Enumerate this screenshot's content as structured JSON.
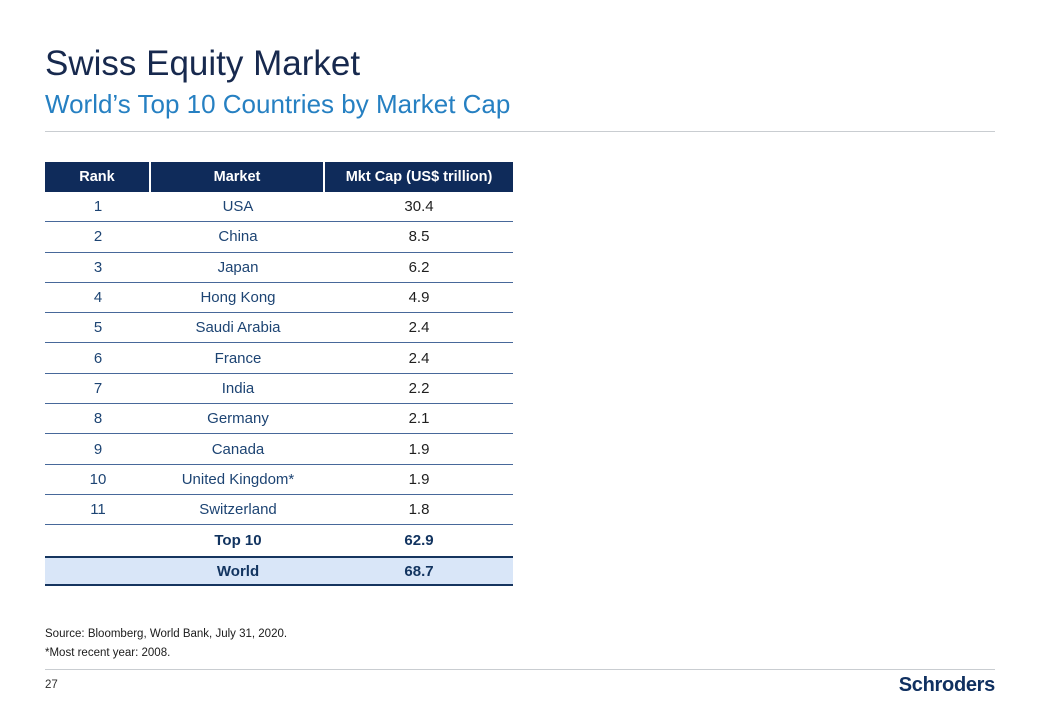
{
  "header": {
    "title": "Swiss Equity Market",
    "subtitle": "World’s Top 10 Countries by Market Cap"
  },
  "chart_data": {
    "type": "table",
    "title": "World’s Top 10 Countries by Market Cap",
    "columns": [
      "Rank",
      "Market",
      "Mkt Cap (US$ trillion)"
    ],
    "rows": [
      [
        "1",
        "USA",
        "30.4"
      ],
      [
        "2",
        "China",
        "8.5"
      ],
      [
        "3",
        "Japan",
        "6.2"
      ],
      [
        "4",
        "Hong Kong",
        "4.9"
      ],
      [
        "5",
        "Saudi Arabia",
        "2.4"
      ],
      [
        "6",
        "France",
        "2.4"
      ],
      [
        "7",
        "India",
        "2.2"
      ],
      [
        "8",
        "Germany",
        "2.1"
      ],
      [
        "9",
        "Canada",
        "1.9"
      ],
      [
        "10",
        "United Kingdom*",
        "1.9"
      ],
      [
        "11",
        "Switzerland",
        "1.8"
      ]
    ],
    "totals": [
      [
        "",
        "Top 10",
        "62.9"
      ],
      [
        "",
        "World",
        "68.7"
      ]
    ]
  },
  "footnotes": {
    "source": "Source: Bloomberg, World Bank, July 31, 2020.",
    "note": "*Most recent year: 2008."
  },
  "footer": {
    "page_number": "27",
    "logo_text": "Schroders"
  },
  "colors": {
    "title_navy": "#17294e",
    "subtitle_blue": "#2680c2",
    "table_header_bg": "#0f2b5a",
    "row_line": "#47689a",
    "body_text_navy": "#1d4473",
    "value_text": "#1f1f1f",
    "total_text_navy": "#123460",
    "world_row_bg": "#d9e6f8",
    "world_row_border": "#16355f",
    "divider_gray": "#c9cdd1"
  }
}
